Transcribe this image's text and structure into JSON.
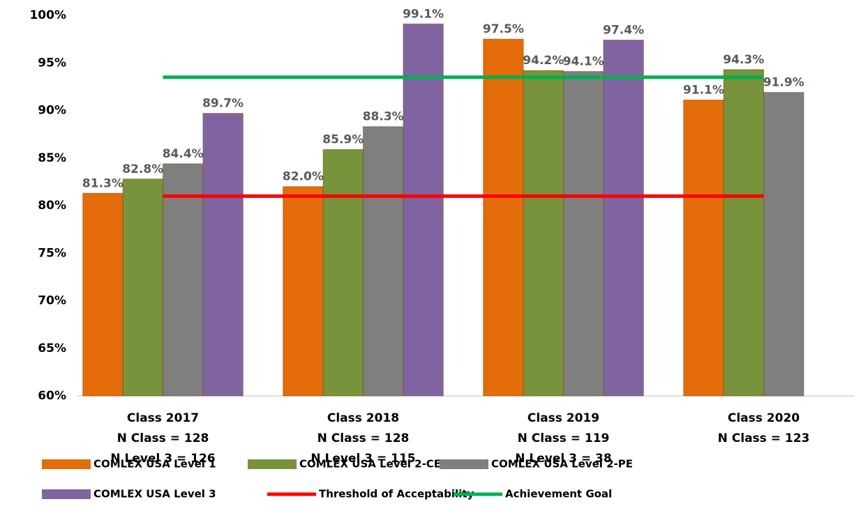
{
  "chart_data": {
    "type": "bar",
    "categories": [
      [
        "Class 2017",
        "N Class = 128",
        "N Level 3 = 126"
      ],
      [
        "Class 2018",
        "N Class = 128",
        "N Level 3 = 115"
      ],
      [
        "Class 2019",
        "N Class = 119",
        "N Level 3 = 38"
      ],
      [
        "Class 2020",
        "N Class = 123"
      ]
    ],
    "series": [
      {
        "name": "COMLEX USA Level 1",
        "type": "bar",
        "color": "#e46c0a",
        "values": [
          81.3,
          82.0,
          97.5,
          91.1
        ],
        "value_labels": [
          "81.3%",
          "82.0%",
          "97.5%",
          "91.1%"
        ]
      },
      {
        "name": "COMLEX USA Level 2-CE",
        "type": "bar",
        "color": "#77933c",
        "values": [
          82.8,
          85.9,
          94.2,
          94.3
        ],
        "value_labels": [
          "82.8%",
          "85.9%",
          "94.2%",
          "94.3%"
        ]
      },
      {
        "name": "COMLEX USA Level 2-PE",
        "type": "bar",
        "color": "#7f7f7f",
        "values": [
          84.4,
          88.3,
          94.1,
          91.9
        ],
        "value_labels": [
          "84.4%",
          "88.3%",
          "94.1%",
          "91.9%"
        ]
      },
      {
        "name": "COMLEX USA Level 3",
        "type": "bar",
        "color": "#8064a2",
        "values": [
          89.7,
          99.1,
          97.4,
          null
        ],
        "value_labels": [
          "89.7%",
          "99.1%",
          "97.4%",
          null
        ]
      },
      {
        "name": "Threshold of Acceptability",
        "type": "line",
        "color": "#ff0000",
        "values": [
          81,
          81,
          81,
          81
        ]
      },
      {
        "name": "Achievement  Goal",
        "type": "line",
        "color": "#00b050",
        "values": [
          93.5,
          93.5,
          93.5,
          93.5
        ]
      }
    ],
    "ylim": [
      60,
      100
    ],
    "yticks": [
      {
        "value": 60,
        "label": "60%"
      },
      {
        "value": 65,
        "label": "65%"
      },
      {
        "value": 70,
        "label": "70%"
      },
      {
        "value": 75,
        "label": "75%"
      },
      {
        "value": 80,
        "label": "80%"
      },
      {
        "value": 85,
        "label": "85%"
      },
      {
        "value": 90,
        "label": "90%"
      },
      {
        "value": 95,
        "label": "95%"
      },
      {
        "value": 100,
        "label": "100%"
      }
    ],
    "grid": false
  }
}
